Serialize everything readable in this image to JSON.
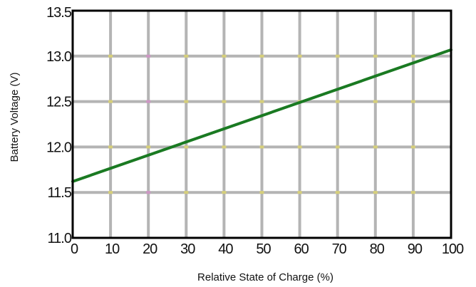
{
  "chart_data": {
    "type": "line",
    "title": "",
    "xlabel": "Relative State of Charge  (%)",
    "ylabel": "Battery Voltage  (V)",
    "xlim": [
      0,
      100
    ],
    "ylim": [
      11.0,
      13.5
    ],
    "x_ticks": [
      "0",
      "10",
      "20",
      "30",
      "40",
      "50",
      "60",
      "70",
      "80",
      "90",
      "100"
    ],
    "y_ticks": [
      "11.0",
      "11.5",
      "12.0",
      "12.5",
      "13.0",
      "13.5"
    ],
    "grid": true,
    "legend": "none",
    "series": [
      {
        "x": [
          0,
          100
        ],
        "y": [
          11.62,
          13.07
        ],
        "color": "#1a7a22"
      }
    ],
    "colors": {
      "grid": "#b4b4b4",
      "frame": "#000000",
      "grid_dot_yellow": "#f2e64a",
      "grid_dot_pink": "#e27fd2"
    }
  }
}
